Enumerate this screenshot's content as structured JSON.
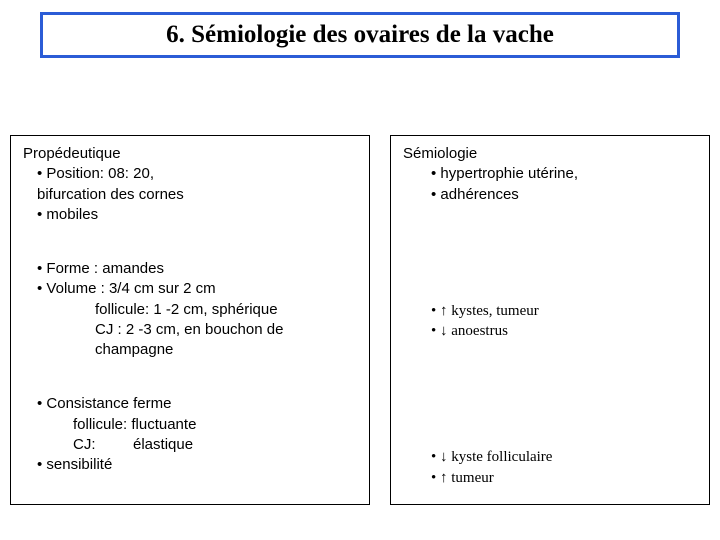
{
  "title": {
    "text": "6. Sémiologie des ovaires de la vache",
    "border_color": "#2b5cd6",
    "font_color": "#000000"
  },
  "left": {
    "heading": "Propédeutique",
    "g1_l1": "• Position: 08: 20,",
    "g1_l2": "bifurcation des cornes",
    "g1_l3": "• mobiles",
    "g2_l1": "• Forme : amandes",
    "g2_l2": "• Volume : 3/4 cm sur 2 cm",
    "g2_l3": "follicule: 1 -2 cm, sphérique",
    "g2_l4": "CJ : 2 -3 cm, en bouchon de",
    "g2_l5": "champagne",
    "g3_l1": "• Consistance ferme",
    "g3_l2": "follicule: fluctuante",
    "g3_l3": "CJ:         élastique",
    "g3_l4": "• sensibilité"
  },
  "right": {
    "heading": "Sémiologie",
    "g1_l1": "• hypertrophie utérine,",
    "g1_l2": "• adhérences",
    "g2_l1": "• ↑ kystes, tumeur",
    "g2_l2": "• ↓ anoestrus",
    "g3_l1": "• ↓ kyste folliculaire",
    "g3_l2": "• ↑ tumeur"
  },
  "layout": {
    "left_group_gap": 34,
    "right_group2_top_pad": 62,
    "right_group3_top_pad": 72
  }
}
